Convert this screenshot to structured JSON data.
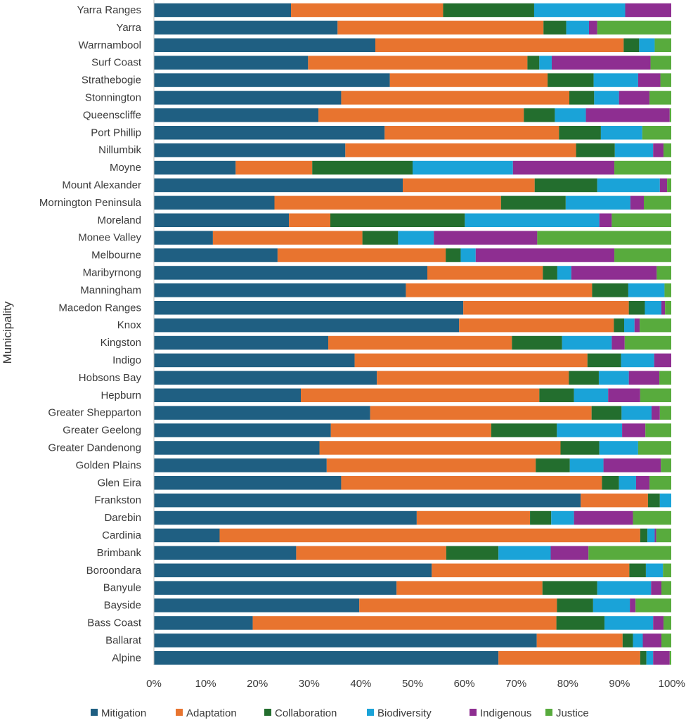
{
  "chart_data": {
    "type": "bar",
    "orientation": "horizontal",
    "stacked": "percent",
    "ylabel": "Municipality",
    "xlabel": "",
    "xlim": [
      0,
      100
    ],
    "x_ticks": [
      "0%",
      "10%",
      "20%",
      "30%",
      "40%",
      "50%",
      "60%",
      "70%",
      "80%",
      "90%",
      "100%"
    ],
    "grid": false,
    "legend_position": "bottom",
    "categories": [
      "Yarra Ranges",
      "Yarra",
      "Warrnambool",
      "Surf Coast",
      "Strathebogie",
      "Stonnington",
      "Queenscliffe",
      "Port Phillip",
      "Nillumbik",
      "Moyne",
      "Mount Alexander",
      "Mornington Peninsula",
      "Moreland",
      "Monee Valley",
      "Melbourne",
      "Maribyrnong",
      "Manningham",
      "Macedon Ranges",
      "Knox",
      "Kingston",
      "Indigo",
      "Hobsons Bay",
      "Hepburn",
      "Greater Shepparton",
      "Greater Geelong",
      "Greater Dandenong",
      "Golden Plains",
      "Glen Eira",
      "Frankston",
      "Darebin",
      "Cardinia",
      "Brimbank",
      "Boroondara",
      "Banyule",
      "Bayside",
      "Bass Coast",
      "Ballarat",
      "Alpine"
    ],
    "series": [
      {
        "name": "Mitigation",
        "color": "#1f5f82",
        "values": [
          26.5,
          35.5,
          42.8,
          29.8,
          45.6,
          36.2,
          31.8,
          44.6,
          37.0,
          15.8,
          48.1,
          23.3,
          26.1,
          11.4,
          23.9,
          52.8,
          48.7,
          59.8,
          59.0,
          33.7,
          38.8,
          43.1,
          28.4,
          41.8,
          34.2,
          32.0,
          33.4,
          36.2,
          82.5,
          50.8,
          12.7,
          27.5,
          53.7,
          46.9,
          39.7,
          19.1,
          74.0,
          66.6
        ]
      },
      {
        "name": "Adaptation",
        "color": "#e8742f",
        "values": [
          29.4,
          39.8,
          48.0,
          42.4,
          30.5,
          44.1,
          39.7,
          33.7,
          44.6,
          14.8,
          25.5,
          43.8,
          8.0,
          28.9,
          32.5,
          22.3,
          36.0,
          32.0,
          29.9,
          35.5,
          45.0,
          37.1,
          46.1,
          42.8,
          31.0,
          46.6,
          40.4,
          50.4,
          13.0,
          21.9,
          81.3,
          29.0,
          38.2,
          28.2,
          38.2,
          58.7,
          16.6,
          27.4
        ]
      },
      {
        "name": "Collaboration",
        "color": "#236e2e",
        "values": [
          17.6,
          4.4,
          3.0,
          2.3,
          8.9,
          4.8,
          6.0,
          8.1,
          7.5,
          19.4,
          12.1,
          12.5,
          26.0,
          6.9,
          2.9,
          2.8,
          7.0,
          3.1,
          2.0,
          9.7,
          6.5,
          5.8,
          6.7,
          5.8,
          12.7,
          7.5,
          6.6,
          3.3,
          2.3,
          4.1,
          1.4,
          10.1,
          3.2,
          10.6,
          7.0,
          9.3,
          2.0,
          1.2
        ]
      },
      {
        "name": "Biodiversity",
        "color": "#1aa3d8",
        "values": [
          17.6,
          4.4,
          3.0,
          2.4,
          8.6,
          4.8,
          6.0,
          8.0,
          7.4,
          19.4,
          12.1,
          12.5,
          26.0,
          6.9,
          2.9,
          2.7,
          7.0,
          3.2,
          2.0,
          9.6,
          6.4,
          5.8,
          6.6,
          5.8,
          12.6,
          7.5,
          6.5,
          3.3,
          2.2,
          4.4,
          1.4,
          10.1,
          3.3,
          10.4,
          7.1,
          9.4,
          1.9,
          1.3
        ]
      },
      {
        "name": "Indigenous",
        "color": "#8e2e91",
        "values": [
          8.9,
          1.6,
          0.0,
          19.1,
          4.3,
          5.9,
          16.2,
          0.0,
          2.0,
          19.6,
          1.4,
          2.6,
          2.4,
          20.0,
          26.8,
          16.5,
          0.0,
          0.7,
          1.0,
          2.5,
          3.3,
          5.9,
          6.2,
          1.6,
          4.5,
          0.0,
          11.1,
          2.6,
          0.0,
          11.4,
          0.3,
          7.3,
          0.0,
          2.0,
          1.1,
          2.0,
          3.6,
          3.2
        ]
      },
      {
        "name": "Justice",
        "color": "#58ab3d",
        "values": [
          0.0,
          14.3,
          3.2,
          4.0,
          2.1,
          4.2,
          0.3,
          5.6,
          1.5,
          11.0,
          0.8,
          5.3,
          11.5,
          25.9,
          11.0,
          2.8,
          1.3,
          1.2,
          6.1,
          9.0,
          0.0,
          2.3,
          6.0,
          2.2,
          5.0,
          6.4,
          2.0,
          4.2,
          0.0,
          7.4,
          2.9,
          16.0,
          1.6,
          1.9,
          6.9,
          1.5,
          1.9,
          0.3
        ]
      }
    ]
  }
}
